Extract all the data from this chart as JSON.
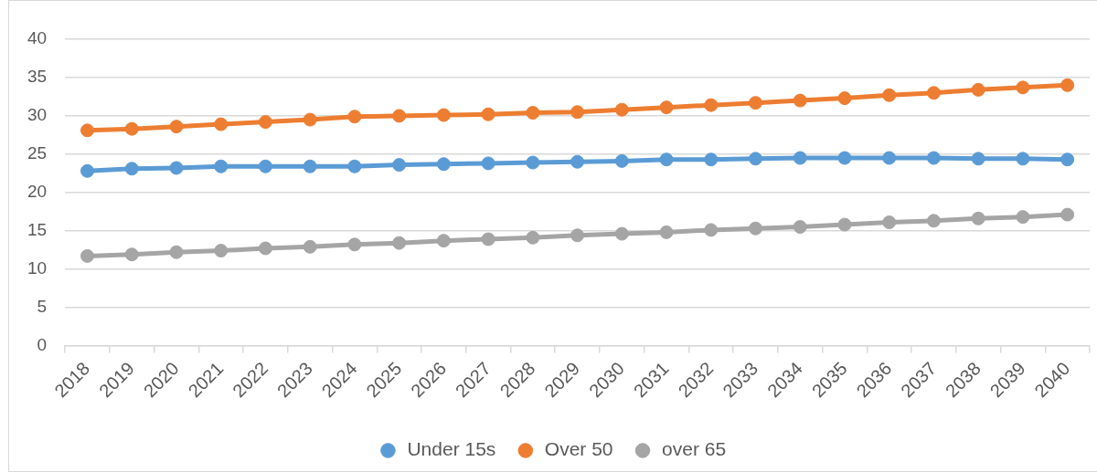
{
  "chart_data": {
    "type": "line",
    "categories": [
      "2018",
      "2019",
      "2020",
      "2021",
      "2022",
      "2023",
      "2024",
      "2025",
      "2026",
      "2027",
      "2028",
      "2029",
      "2030",
      "2031",
      "2032",
      "2033",
      "2034",
      "2035",
      "2036",
      "2037",
      "2038",
      "2039",
      "2040"
    ],
    "series": [
      {
        "name": "Under 15s",
        "color": "#5b9bd5",
        "values": [
          22.8,
          23.1,
          23.2,
          23.4,
          23.4,
          23.4,
          23.4,
          23.6,
          23.7,
          23.8,
          23.9,
          24.0,
          24.1,
          24.3,
          24.3,
          24.4,
          24.5,
          24.5,
          24.5,
          24.5,
          24.4,
          24.4,
          24.3
        ]
      },
      {
        "name": "Over 50",
        "color": "#ed7d31",
        "values": [
          28.1,
          28.3,
          28.6,
          28.9,
          29.2,
          29.5,
          29.9,
          30.0,
          30.1,
          30.2,
          30.4,
          30.5,
          30.8,
          31.1,
          31.4,
          31.7,
          32.0,
          32.3,
          32.7,
          33.0,
          33.4,
          33.7,
          34.0
        ]
      },
      {
        "name": "over 65",
        "color": "#a5a5a5",
        "values": [
          11.7,
          11.9,
          12.2,
          12.4,
          12.7,
          12.9,
          13.2,
          13.4,
          13.7,
          13.9,
          14.1,
          14.4,
          14.6,
          14.8,
          15.1,
          15.3,
          15.5,
          15.8,
          16.1,
          16.3,
          16.6,
          16.8,
          17.1
        ]
      }
    ],
    "ylim": [
      0,
      40
    ],
    "yticks": [
      0,
      5,
      10,
      15,
      20,
      25,
      30,
      35,
      40
    ],
    "grid": "y",
    "legend": "bottom",
    "marker": "circle",
    "line_style": "solid"
  }
}
